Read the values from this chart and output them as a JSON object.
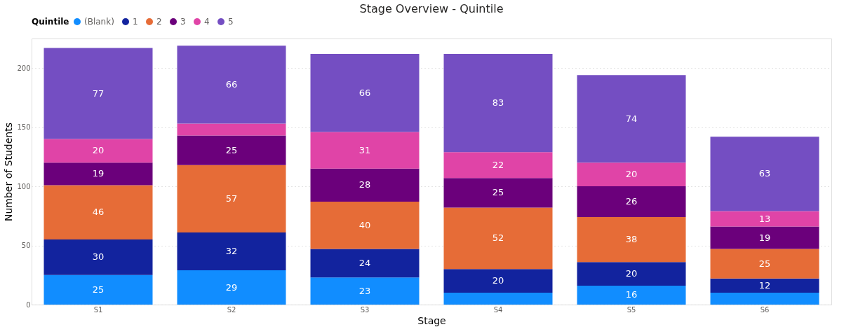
{
  "chart_data": {
    "type": "bar",
    "title": "Stage Overview - Quintile",
    "xlabel": "Stage",
    "ylabel": "Number of Students",
    "legend_title": "Quintile",
    "legend": "top",
    "stacked": true,
    "grid": "y",
    "ylim": [
      0,
      225
    ],
    "yticks": [
      0,
      50,
      100,
      150,
      200
    ],
    "categories": [
      "S1",
      "S2",
      "S3",
      "S4",
      "S5",
      "S6"
    ],
    "series": [
      {
        "name": "(Blank)",
        "color": "#118dff",
        "values": [
          25,
          29,
          23,
          10,
          16,
          10
        ],
        "value_labels": [
          "25",
          "29",
          "23",
          null,
          "16",
          null
        ]
      },
      {
        "name": "1",
        "color": "#12239e",
        "values": [
          30,
          32,
          24,
          20,
          20,
          12
        ],
        "value_labels": [
          "30",
          "32",
          "24",
          "20",
          "20",
          "12"
        ]
      },
      {
        "name": "2",
        "color": "#e66c37",
        "values": [
          46,
          57,
          40,
          52,
          38,
          25
        ],
        "value_labels": [
          "46",
          "57",
          "40",
          "52",
          "38",
          "25"
        ]
      },
      {
        "name": "3",
        "color": "#6b007b",
        "values": [
          19,
          25,
          28,
          25,
          26,
          19
        ],
        "value_labels": [
          "19",
          "25",
          "28",
          "25",
          "26",
          "19"
        ]
      },
      {
        "name": "4",
        "color": "#e044a7",
        "values": [
          20,
          10,
          31,
          22,
          20,
          13
        ],
        "value_labels": [
          "20",
          null,
          "31",
          "22",
          "20",
          "13"
        ]
      },
      {
        "name": "5",
        "color": "#744ec2",
        "values": [
          77,
          66,
          66,
          83,
          74,
          63
        ],
        "value_labels": [
          "77",
          "66",
          "66",
          "83",
          "74",
          "63"
        ]
      }
    ]
  }
}
